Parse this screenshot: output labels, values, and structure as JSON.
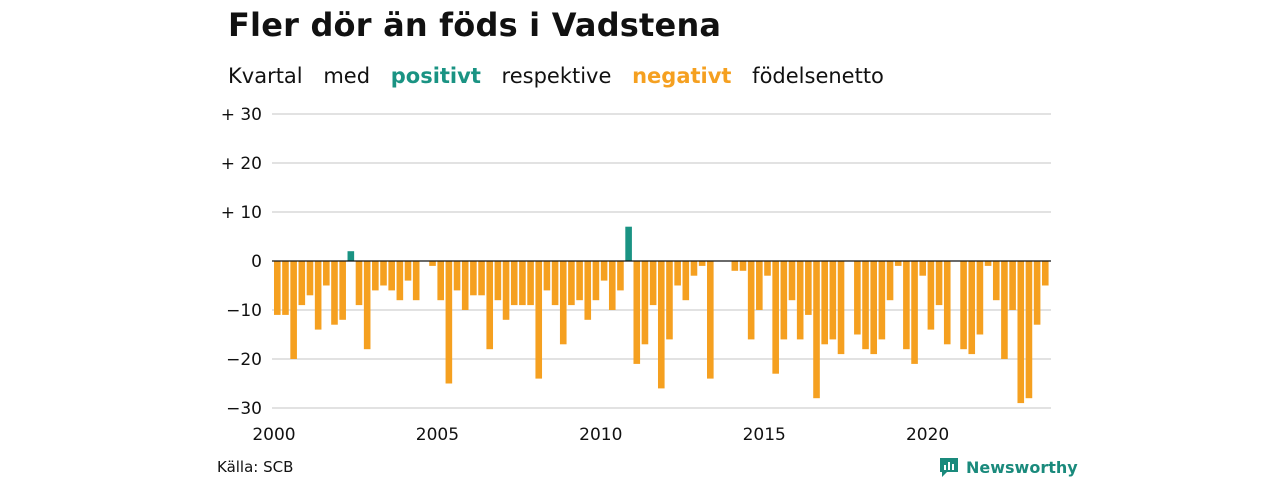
{
  "title": "Fler dör än föds i Vadstena",
  "subtitle": {
    "w1": "Kvartal",
    "w2": "med",
    "positive": "positivt",
    "w3": "respektive",
    "negative": "negativt",
    "w4": "födelsenetto"
  },
  "source": "Källa: SCB",
  "brand": "Newsworthy",
  "colors": {
    "positive": "#1a9383",
    "negative": "#f5a020",
    "grid": "#d9d9d9",
    "zero_line": "#111111",
    "brand": "#1a8a7c"
  },
  "chart_data": {
    "type": "bar",
    "x_start": 2000,
    "period": "quarter",
    "ylim": [
      -30,
      30
    ],
    "yticks": [
      {
        "value": 30,
        "label": "+ 30"
      },
      {
        "value": 20,
        "label": "+ 20"
      },
      {
        "value": 10,
        "label": "+ 10"
      },
      {
        "value": 0,
        "label": "0"
      },
      {
        "value": -10,
        "label": "−10"
      },
      {
        "value": -20,
        "label": "−20"
      },
      {
        "value": -30,
        "label": "−30"
      }
    ],
    "xticks": [
      "2000",
      "2005",
      "2010",
      "2015",
      "2020"
    ],
    "grid": true,
    "values": [
      -11,
      -11,
      -20,
      -9,
      -7,
      -14,
      -5,
      -13,
      -12,
      2,
      -9,
      -18,
      -6,
      -5,
      -6,
      -8,
      -4,
      -8,
      0,
      -1,
      -8,
      -25,
      -6,
      -10,
      -7,
      -7,
      -18,
      -8,
      -12,
      -9,
      -9,
      -9,
      -24,
      -6,
      -9,
      -17,
      -9,
      -8,
      -12,
      -8,
      -4,
      -10,
      -6,
      7,
      -21,
      -17,
      -9,
      -26,
      -16,
      -5,
      -8,
      -3,
      -1,
      -24,
      0,
      0,
      -2,
      -2,
      -16,
      -10,
      -3,
      -23,
      -16,
      -8,
      -16,
      -11,
      -28,
      -17,
      -16,
      -19,
      0,
      -15,
      -18,
      -19,
      -16,
      -8,
      -1,
      -18,
      -21,
      -3,
      -14,
      -9,
      -17,
      0,
      -18,
      -19,
      -15,
      -1,
      -8,
      -20,
      -10,
      -29,
      -28,
      -13,
      -5
    ]
  }
}
